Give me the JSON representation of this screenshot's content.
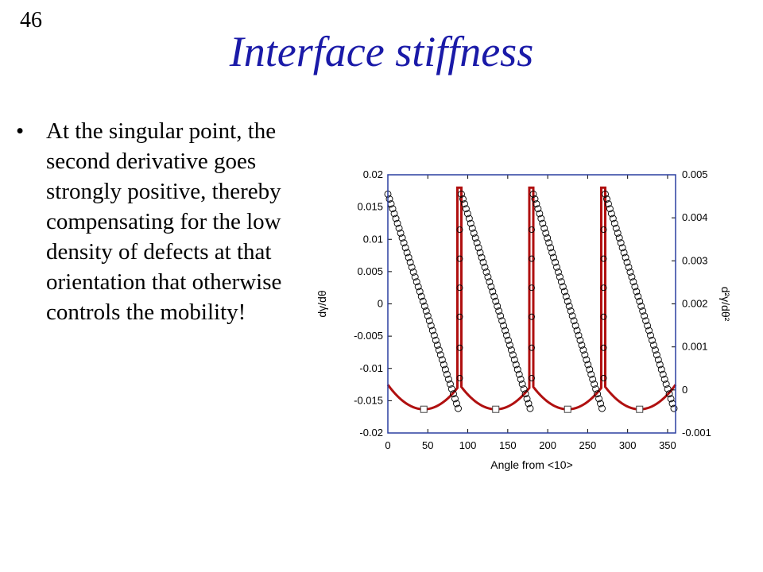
{
  "slide": {
    "number": "46",
    "title": "Interface stiffness",
    "bullet": "At the singular point, the second derivative goes strongly positive, thereby compensating for the low density of defects at that orientation that otherwise controls the mobility!"
  },
  "colors": {
    "title": "#1a1aa8",
    "frame": "#2a3fa0",
    "curve": "#b01010",
    "circles": "#000000"
  },
  "chart_data": {
    "type": "line",
    "xlabel": "Angle from <10>",
    "ylabel": "dγ/dθ",
    "y2label": "d²γ/dθ²",
    "xlim": [
      0,
      360
    ],
    "ylim": [
      -0.02,
      0.02
    ],
    "y2lim": [
      -0.001,
      0.005
    ],
    "xticks": [
      "0",
      "50",
      "100",
      "150",
      "200",
      "250",
      "300",
      "350"
    ],
    "yticks": [
      "-0.02",
      "-0.015",
      "-0.01",
      "-0.005",
      "0",
      "0.005",
      "0.01",
      "0.015",
      "0.02"
    ],
    "y2ticks": [
      "-0.001",
      "0",
      "0.001",
      "0.002",
      "0.003",
      "0.004",
      "0.005"
    ],
    "series": [
      {
        "axis": "left",
        "marker": "circle",
        "segments": [
          {
            "x0": 0,
            "x1": 88,
            "y0": 0.017,
            "y1": -0.0162
          },
          {
            "x0": 92,
            "x1": 178,
            "y0": 0.017,
            "y1": -0.0162
          },
          {
            "x0": 182,
            "x1": 268,
            "y0": 0.017,
            "y1": -0.0162
          },
          {
            "x0": 272,
            "x1": 358,
            "y0": 0.017,
            "y1": -0.0162
          }
        ],
        "vertical_points": [
          {
            "x": 90,
            "y": [
              0.0115,
              0.007,
              0.0025,
              -0.002,
              -0.0068,
              -0.0115
            ]
          },
          {
            "x": 180,
            "y": [
              0.0115,
              0.007,
              0.0025,
              -0.002,
              -0.0068,
              -0.0115
            ]
          },
          {
            "x": 270,
            "y": [
              0.0115,
              0.007,
              0.0025,
              -0.002,
              -0.0068,
              -0.0115
            ]
          }
        ]
      },
      {
        "axis": "right",
        "marker": "square",
        "base": -0.00045,
        "peak": 0.00012,
        "spike": 0.0047,
        "spikes": [
          {
            "x0": 87,
            "x1": 92
          },
          {
            "x0": 177,
            "x1": 182
          },
          {
            "x0": 267,
            "x1": 272
          }
        ],
        "markers": [
          45,
          135,
          225,
          315
        ]
      }
    ]
  }
}
